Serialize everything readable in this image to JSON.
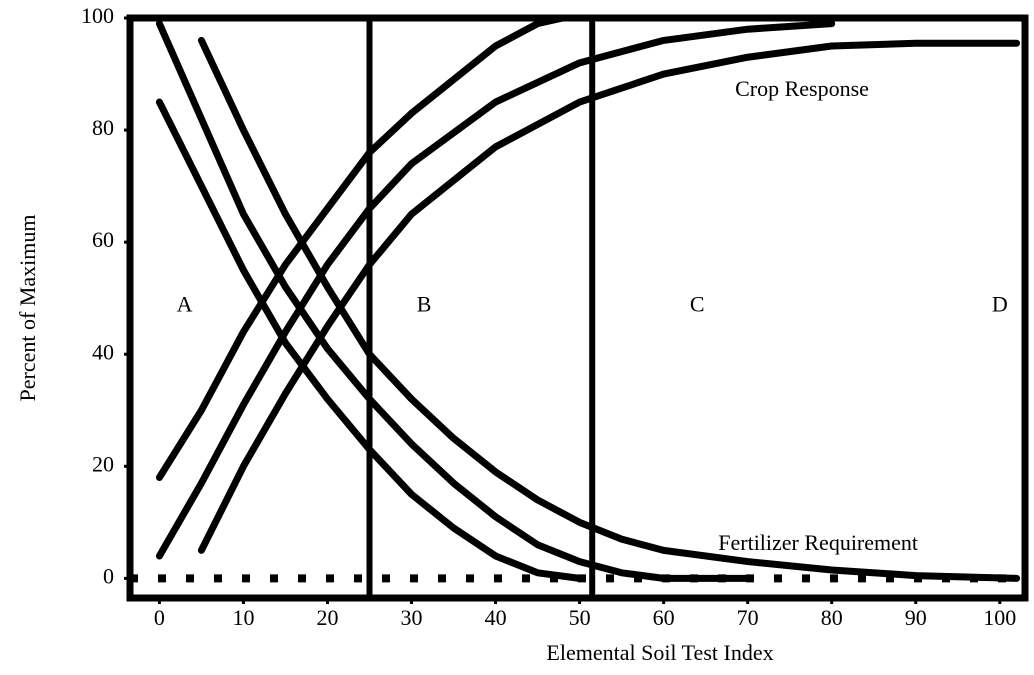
{
  "chart_data": {
    "type": "line",
    "xlabel": "Elemental Soil Test Index",
    "ylabel": "Percent of Maximum",
    "xlim": [
      -3.5,
      103
    ],
    "ylim": [
      -3.5,
      100
    ],
    "xticks": [
      0,
      10,
      20,
      30,
      40,
      50,
      60,
      70,
      80,
      90,
      100
    ],
    "yticks": [
      0,
      20,
      40,
      60,
      80,
      100
    ],
    "vlines": [
      25,
      51.5
    ],
    "color": "#000000",
    "series": [
      {
        "color": "#000000",
        "x": [
          0,
          5,
          10,
          15,
          20,
          25,
          30,
          35,
          40,
          45,
          48
        ],
        "values": [
          18,
          30,
          44,
          56,
          66,
          76,
          83,
          89,
          95,
          99,
          100
        ]
      },
      {
        "color": "#000000",
        "x": [
          0,
          5,
          10,
          15,
          20,
          25,
          30,
          40,
          50,
          60,
          70,
          80
        ],
        "values": [
          4,
          17,
          31,
          44,
          56,
          66,
          74,
          85,
          92,
          96,
          98,
          99
        ]
      },
      {
        "color": "#000000",
        "x": [
          5,
          10,
          15,
          20,
          25,
          30,
          40,
          50,
          60,
          70,
          80,
          90,
          102
        ],
        "values": [
          5,
          20,
          33,
          45,
          56,
          65,
          77,
          85,
          90,
          93,
          95,
          95.5,
          95.5
        ]
      },
      {
        "color": "#000000",
        "x": [
          0,
          5,
          10,
          15,
          20,
          25,
          30,
          35,
          40,
          45,
          50
        ],
        "values": [
          85,
          70,
          55,
          42,
          32,
          23,
          15,
          9,
          4,
          1,
          0
        ]
      },
      {
        "color": "#000000",
        "x": [
          0,
          5,
          10,
          15,
          20,
          25,
          30,
          35,
          40,
          45,
          50,
          55,
          60,
          70
        ],
        "values": [
          99,
          82,
          65,
          52,
          41,
          32,
          24,
          17,
          11,
          6,
          3,
          1,
          0,
          0
        ]
      },
      {
        "color": "#000000",
        "x": [
          5,
          10,
          15,
          20,
          25,
          30,
          35,
          40,
          45,
          50,
          55,
          60,
          70,
          80,
          90,
          102
        ],
        "values": [
          96,
          80,
          65,
          52,
          40,
          32,
          25,
          19,
          14,
          10,
          7,
          5,
          3,
          1.5,
          0.5,
          0
        ]
      }
    ],
    "annotations": [
      {
        "text": "Crop Response",
        "x": 68.5,
        "y": 87
      },
      {
        "text": "Fertilizer Requirement",
        "x": 66.5,
        "y": 6
      },
      {
        "text": "A",
        "x": 3,
        "y": 48.5
      },
      {
        "text": "B",
        "x": 31.5,
        "y": 48.5
      },
      {
        "text": "C",
        "x": 64,
        "y": 48.5
      },
      {
        "text": "D",
        "x": 100,
        "y": 48.5
      }
    ]
  }
}
